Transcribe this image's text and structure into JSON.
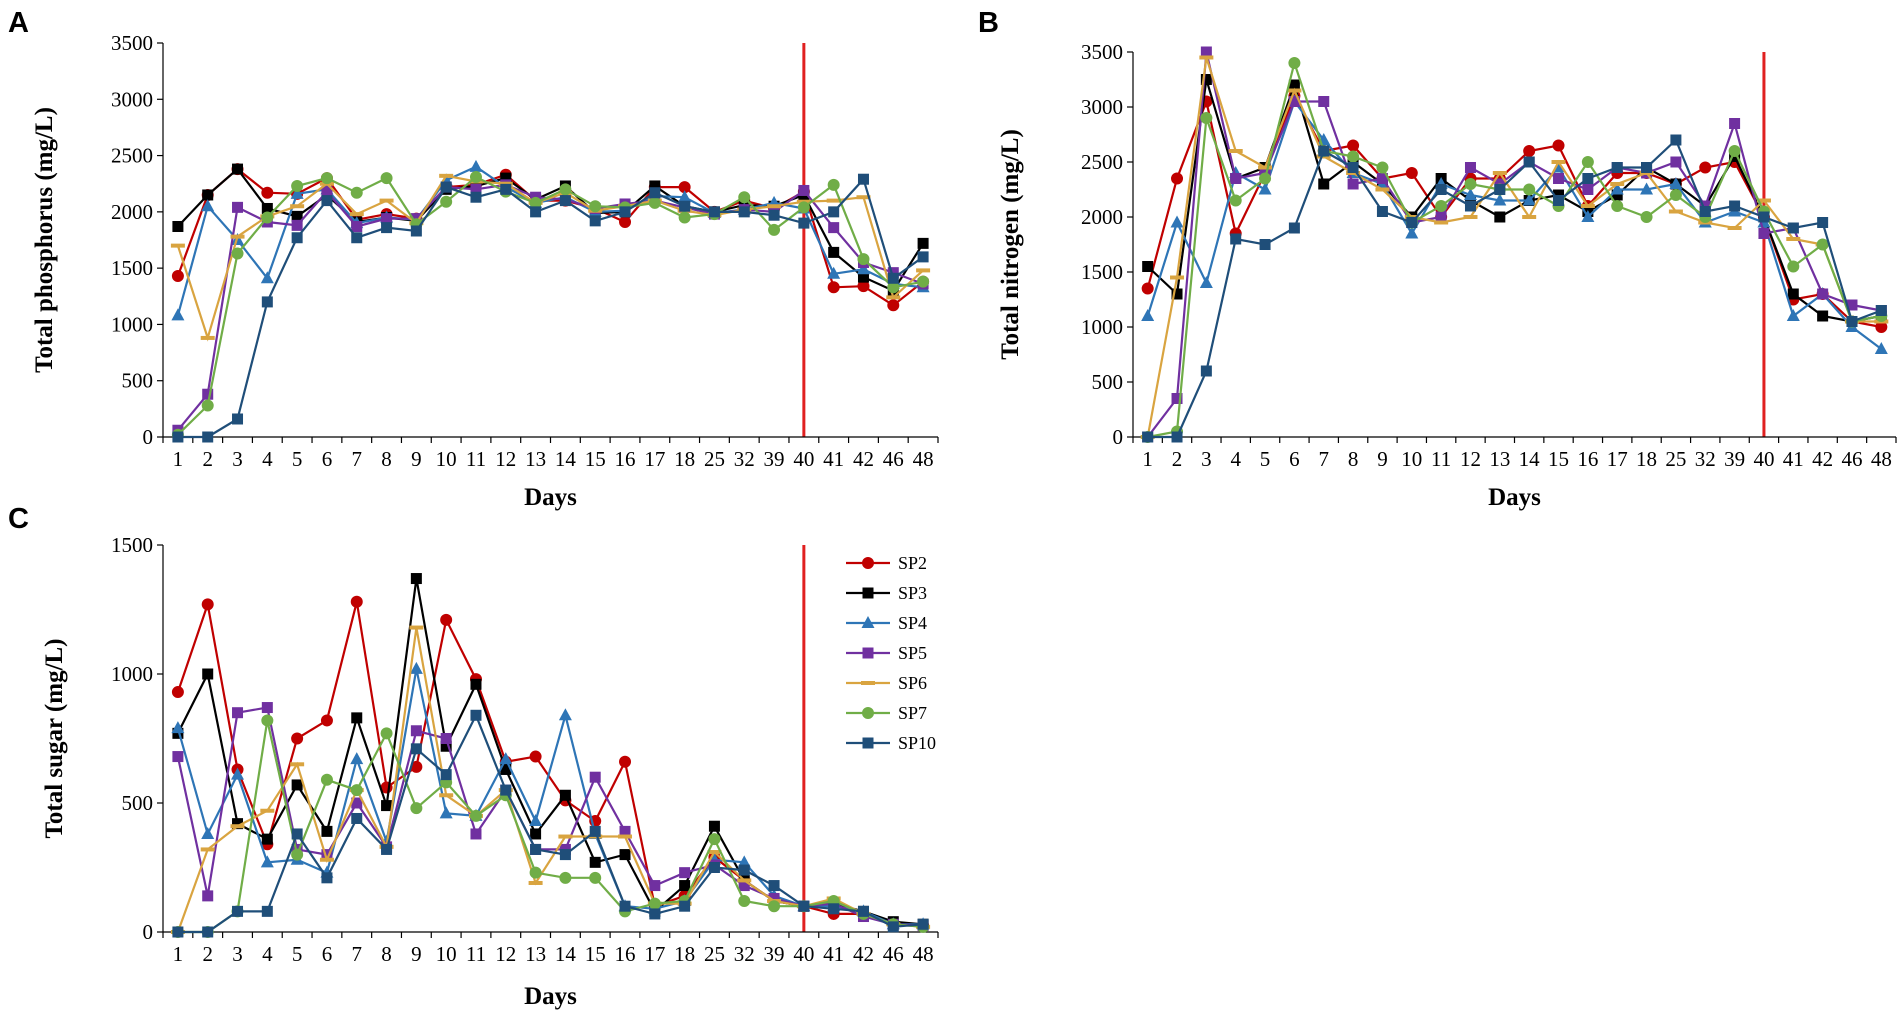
{
  "chart_data": [
    {
      "panel": "A",
      "type": "line",
      "title": "",
      "xlabel": "Days",
      "ylabel": "Total phosphorus (mg/L)",
      "ylim": [
        0,
        3500
      ],
      "yticks": [
        0,
        500,
        1000,
        1500,
        2000,
        2500,
        3000,
        3500
      ],
      "categories": [
        "1",
        "2",
        "3",
        "4",
        "5",
        "6",
        "7",
        "8",
        "9",
        "10",
        "11",
        "12",
        "13",
        "14",
        "15",
        "16",
        "17",
        "18",
        "25",
        "32",
        "39",
        "40",
        "41",
        "42",
        "46",
        "48"
      ],
      "vline_at": "40",
      "series": [
        {
          "name": "SP2",
          "values": [
            1430,
            2150,
            2380,
            2170,
            2160,
            2300,
            1930,
            1980,
            1940,
            2220,
            2240,
            2330,
            2100,
            2100,
            2030,
            1910,
            2220,
            2220,
            2000,
            2100,
            2030,
            2180,
            1330,
            1340,
            1170,
            1380
          ]
        },
        {
          "name": "SP3",
          "values": [
            1870,
            2150,
            2380,
            2030,
            1960,
            2150,
            1910,
            1950,
            1920,
            2200,
            2230,
            2300,
            2110,
            2230,
            1990,
            2000,
            2230,
            2050,
            2000,
            2060,
            2050,
            2150,
            1640,
            1420,
            1300,
            1720
          ]
        },
        {
          "name": "SP4",
          "values": [
            1080,
            2050,
            1750,
            1410,
            2160,
            2200,
            1900,
            1950,
            1930,
            2280,
            2400,
            2220,
            2080,
            2130,
            2000,
            2010,
            2140,
            2130,
            1990,
            2020,
            2080,
            2030,
            1450,
            1490,
            1360,
            1330
          ]
        },
        {
          "name": "SP5",
          "values": [
            60,
            380,
            2040,
            1910,
            1880,
            2180,
            1870,
            1940,
            1940,
            2220,
            2200,
            2240,
            2130,
            2110,
            2030,
            2070,
            2100,
            2040,
            1980,
            2020,
            2000,
            2190,
            1860,
            1550,
            1460,
            1360
          ]
        },
        {
          "name": "SP6",
          "values": [
            1700,
            880,
            1780,
            1960,
            2050,
            2250,
            1980,
            2100,
            1900,
            2320,
            2270,
            2250,
            2080,
            2170,
            2010,
            2050,
            2100,
            2010,
            1970,
            2020,
            2050,
            2090,
            2100,
            2130,
            1240,
            1480
          ]
        },
        {
          "name": "SP7",
          "values": [
            20,
            280,
            1630,
            1950,
            2230,
            2300,
            2170,
            2300,
            1890,
            2090,
            2310,
            2180,
            2080,
            2200,
            2050,
            2040,
            2080,
            1950,
            1980,
            2130,
            1840,
            2040,
            2240,
            1580,
            1330,
            1380
          ]
        },
        {
          "name": "SP10",
          "values": [
            0,
            0,
            160,
            1200,
            1770,
            2100,
            1770,
            1860,
            1830,
            2220,
            2130,
            2200,
            2000,
            2100,
            1920,
            2000,
            2170,
            2050,
            2000,
            2000,
            1970,
            1900,
            2000,
            2290,
            1410,
            1600
          ]
        }
      ]
    },
    {
      "panel": "B",
      "type": "line",
      "title": "",
      "xlabel": "Days",
      "ylabel": "Total nitrogen (mg/L)",
      "ylim": [
        0,
        3500
      ],
      "yticks": [
        0,
        500,
        1000,
        1500,
        2000,
        2500,
        3000,
        3500
      ],
      "categories": [
        "1",
        "2",
        "3",
        "4",
        "5",
        "6",
        "7",
        "8",
        "9",
        "10",
        "11",
        "12",
        "13",
        "14",
        "15",
        "16",
        "17",
        "18",
        "25",
        "32",
        "39",
        "40",
        "41",
        "42",
        "46",
        "48"
      ],
      "vline_at": "40",
      "series": [
        {
          "name": "SP2",
          "values": [
            1350,
            2350,
            3050,
            1850,
            2400,
            3100,
            2600,
            2650,
            2350,
            2400,
            2000,
            2350,
            2350,
            2600,
            2650,
            2100,
            2400,
            2400,
            2300,
            2450,
            2500,
            2000,
            1250,
            1300,
            1050,
            1000
          ]
        },
        {
          "name": "SP3",
          "values": [
            1550,
            1300,
            3250,
            2350,
            2450,
            3200,
            2300,
            2500,
            2300,
            2000,
            2350,
            2150,
            2000,
            2150,
            2200,
            2050,
            2200,
            2450,
            2300,
            2100,
            2550,
            2000,
            1300,
            1100,
            1050,
            1100
          ]
        },
        {
          "name": "SP4",
          "values": [
            1100,
            1950,
            1400,
            2400,
            2250,
            3050,
            2700,
            2400,
            2300,
            1850,
            2300,
            2200,
            2150,
            2150,
            2450,
            2000,
            2250,
            2250,
            2300,
            1950,
            2050,
            1950,
            1100,
            1300,
            1000,
            800
          ]
        },
        {
          "name": "SP5",
          "values": [
            0,
            350,
            3500,
            2350,
            2400,
            3050,
            3050,
            2300,
            2350,
            1950,
            2000,
            2450,
            2300,
            2500,
            2350,
            2250,
            2450,
            2400,
            2500,
            2100,
            2850,
            1850,
            1900,
            1300,
            1200,
            1150
          ]
        },
        {
          "name": "SP6",
          "values": [
            0,
            1450,
            3450,
            2600,
            2450,
            3150,
            2550,
            2400,
            2250,
            2000,
            1950,
            2000,
            2400,
            2000,
            2500,
            2100,
            2300,
            2400,
            2050,
            1950,
            1900,
            2150,
            1800,
            1750,
            1050,
            1050
          ]
        },
        {
          "name": "SP7",
          "values": [
            0,
            50,
            2900,
            2150,
            2350,
            3400,
            2600,
            2550,
            2450,
            1950,
            2100,
            2300,
            2250,
            2250,
            2100,
            2500,
            2100,
            2000,
            2200,
            2000,
            2600,
            2050,
            1550,
            1750,
            1050,
            1100
          ]
        },
        {
          "name": "SP10",
          "values": [
            0,
            0,
            600,
            1800,
            1750,
            1900,
            2600,
            2450,
            2050,
            1950,
            2250,
            2100,
            2250,
            2500,
            2150,
            2350,
            2450,
            2450,
            2700,
            2050,
            2100,
            2000,
            1900,
            1950,
            1050,
            1150
          ]
        }
      ]
    },
    {
      "panel": "C",
      "type": "line",
      "title": "",
      "xlabel": "Days",
      "ylabel": "Total sugar (mg/L)",
      "ylim": [
        0,
        1500
      ],
      "yticks": [
        0,
        500,
        1000,
        1500
      ],
      "categories": [
        "1",
        "2",
        "3",
        "4",
        "5",
        "6",
        "7",
        "8",
        "9",
        "10",
        "11",
        "12",
        "13",
        "14",
        "15",
        "16",
        "17",
        "18",
        "25",
        "32",
        "39",
        "40",
        "41",
        "42",
        "46",
        "48"
      ],
      "vline_at": "40",
      "legend_position": "top-right",
      "series": [
        {
          "name": "SP2",
          "values": [
            930,
            1270,
            630,
            340,
            750,
            820,
            1280,
            560,
            640,
            1210,
            980,
            660,
            680,
            510,
            430,
            660,
            100,
            140,
            290,
            200,
            120,
            100,
            70,
            70,
            30,
            25
          ]
        },
        {
          "name": "SP3",
          "values": [
            770,
            1000,
            420,
            360,
            570,
            390,
            830,
            490,
            1370,
            720,
            960,
            630,
            380,
            530,
            270,
            300,
            80,
            180,
            410,
            200,
            120,
            100,
            110,
            80,
            40,
            30
          ]
        },
        {
          "name": "SP4",
          "values": [
            790,
            380,
            610,
            270,
            280,
            230,
            670,
            350,
            1020,
            460,
            450,
            670,
            430,
            840,
            380,
            100,
            90,
            120,
            280,
            270,
            140,
            100,
            100,
            80,
            30,
            30
          ]
        },
        {
          "name": "SP5",
          "values": [
            680,
            140,
            850,
            870,
            320,
            300,
            500,
            330,
            780,
            750,
            380,
            550,
            320,
            320,
            600,
            390,
            180,
            230,
            260,
            180,
            130,
            100,
            110,
            60,
            30,
            25
          ]
        },
        {
          "name": "SP6",
          "values": [
            0,
            320,
            410,
            470,
            650,
            280,
            550,
            330,
            1180,
            530,
            450,
            550,
            190,
            370,
            370,
            370,
            110,
            110,
            310,
            200,
            120,
            100,
            130,
            70,
            30,
            20
          ]
        },
        {
          "name": "SP7",
          "values": [
            0,
            0,
            80,
            820,
            300,
            590,
            550,
            770,
            480,
            580,
            450,
            530,
            230,
            210,
            210,
            80,
            110,
            120,
            360,
            120,
            100,
            100,
            120,
            70,
            30,
            20
          ]
        },
        {
          "name": "SP10",
          "values": [
            0,
            0,
            80,
            80,
            380,
            210,
            440,
            320,
            710,
            610,
            840,
            550,
            320,
            300,
            390,
            100,
            70,
            100,
            250,
            240,
            180,
            100,
            90,
            80,
            20,
            30
          ]
        }
      ]
    }
  ],
  "panels": {
    "A": {
      "letter": "A"
    },
    "B": {
      "letter": "B"
    },
    "C": {
      "letter": "C"
    }
  },
  "colors": {
    "SP2": "#c00000",
    "SP3": "#000000",
    "SP4": "#2e75b6",
    "SP5": "#7030a0",
    "SP6": "#d9a440",
    "SP7": "#70ad47",
    "SP10": "#1f4e79",
    "vline": "#e02020",
    "axis": "#000000"
  },
  "markers": {
    "SP2": "circle",
    "SP3": "square",
    "SP4": "triangle",
    "SP5": "square",
    "SP6": "dash",
    "SP7": "circle",
    "SP10": "square"
  }
}
